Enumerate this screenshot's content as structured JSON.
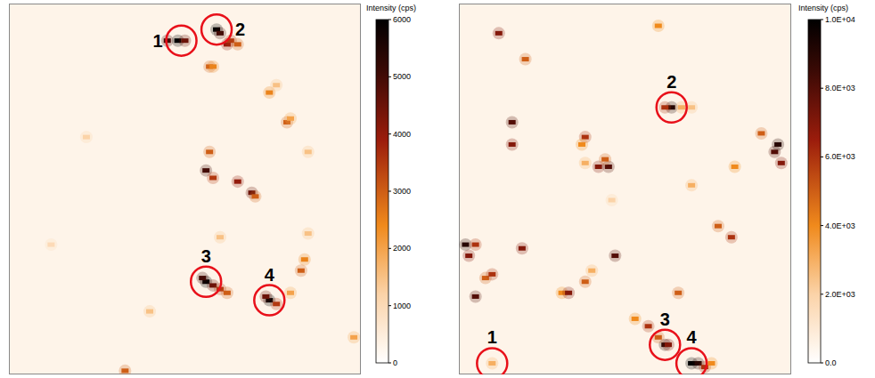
{
  "chart_data": [
    {
      "type": "heatmap",
      "tick_labels": false,
      "xlim": [
        0,
        100
      ],
      "ylim": [
        0,
        100
      ],
      "background": 300,
      "colorbar": {
        "title": "Intensity (cps)",
        "range": [
          0,
          6000
        ],
        "ticks": [
          0,
          1000,
          2000,
          3000,
          4000,
          5000,
          6000
        ]
      },
      "spots": [
        {
          "x": 48,
          "y": 90,
          "value": 6000
        },
        {
          "x": 45,
          "y": 90,
          "value": 5000
        },
        {
          "x": 50,
          "y": 90,
          "value": 4500
        },
        {
          "x": 59,
          "y": 93,
          "value": 6000
        },
        {
          "x": 60,
          "y": 92,
          "value": 5000
        },
        {
          "x": 62,
          "y": 89,
          "value": 4000
        },
        {
          "x": 57,
          "y": 83,
          "value": 3000
        },
        {
          "x": 58,
          "y": 83,
          "value": 2500
        },
        {
          "x": 63,
          "y": 90,
          "value": 3500
        },
        {
          "x": 65,
          "y": 89,
          "value": 3000
        },
        {
          "x": 74,
          "y": 76,
          "value": 2500
        },
        {
          "x": 76,
          "y": 78,
          "value": 1500
        },
        {
          "x": 79,
          "y": 68,
          "value": 3000
        },
        {
          "x": 80,
          "y": 69,
          "value": 2000
        },
        {
          "x": 22,
          "y": 64,
          "value": 1200
        },
        {
          "x": 56,
          "y": 55,
          "value": 5000
        },
        {
          "x": 58,
          "y": 53,
          "value": 3500
        },
        {
          "x": 65,
          "y": 52,
          "value": 4000
        },
        {
          "x": 69,
          "y": 49,
          "value": 4500
        },
        {
          "x": 70,
          "y": 48,
          "value": 3000
        },
        {
          "x": 57,
          "y": 60,
          "value": 3000
        },
        {
          "x": 85,
          "y": 60,
          "value": 1500
        },
        {
          "x": 56,
          "y": 25,
          "value": 6000
        },
        {
          "x": 55,
          "y": 26,
          "value": 5000
        },
        {
          "x": 58,
          "y": 24,
          "value": 4500
        },
        {
          "x": 60,
          "y": 23,
          "value": 3500
        },
        {
          "x": 62,
          "y": 22,
          "value": 3000
        },
        {
          "x": 74,
          "y": 20,
          "value": 6000
        },
        {
          "x": 73,
          "y": 21,
          "value": 4500
        },
        {
          "x": 76,
          "y": 19,
          "value": 3500
        },
        {
          "x": 80,
          "y": 22,
          "value": 2000
        },
        {
          "x": 84,
          "y": 31,
          "value": 2500
        },
        {
          "x": 83,
          "y": 28,
          "value": 3000
        },
        {
          "x": 85,
          "y": 38,
          "value": 1500
        },
        {
          "x": 98,
          "y": 10,
          "value": 2000
        },
        {
          "x": 33,
          "y": 1,
          "value": 3000
        },
        {
          "x": 40,
          "y": 17,
          "value": 1500
        },
        {
          "x": 12,
          "y": 35,
          "value": 1000
        },
        {
          "x": 60,
          "y": 37,
          "value": 1500
        }
      ],
      "markers": [
        {
          "label": "1",
          "x": 49,
          "y": 90
        },
        {
          "label": "2",
          "x": 59,
          "y": 93
        },
        {
          "label": "3",
          "x": 56,
          "y": 25
        },
        {
          "label": "4",
          "x": 74,
          "y": 20
        }
      ]
    },
    {
      "type": "heatmap",
      "tick_labels": false,
      "xlim": [
        0,
        100
      ],
      "ylim": [
        0,
        100
      ],
      "background": 500,
      "colorbar": {
        "title": "Intensity (cps)",
        "range": [
          0,
          10000
        ],
        "ticks": [
          {
            "value": 0,
            "label": "0.0"
          },
          {
            "value": 2000,
            "label": "2.0E+03"
          },
          {
            "value": 4000,
            "label": "4.0E+03"
          },
          {
            "value": 6000,
            "label": "6.0E+03"
          },
          {
            "value": 8000,
            "label": "8.0E+03"
          },
          {
            "value": 10000,
            "label": "1.0E+04"
          }
        ]
      },
      "spots": [
        {
          "x": 64,
          "y": 72,
          "value": 9000
        },
        {
          "x": 62,
          "y": 72,
          "value": 6000
        },
        {
          "x": 67,
          "y": 72,
          "value": 3000
        },
        {
          "x": 70,
          "y": 72,
          "value": 2500
        },
        {
          "x": 38,
          "y": 64,
          "value": 6000
        },
        {
          "x": 37,
          "y": 62,
          "value": 4000
        },
        {
          "x": 42,
          "y": 56,
          "value": 7000
        },
        {
          "x": 45,
          "y": 56,
          "value": 8000
        },
        {
          "x": 44,
          "y": 58,
          "value": 5000
        },
        {
          "x": 38,
          "y": 57,
          "value": 3000
        },
        {
          "x": 16,
          "y": 68,
          "value": 8000
        },
        {
          "x": 16,
          "y": 62,
          "value": 7000
        },
        {
          "x": 95,
          "y": 60,
          "value": 8000
        },
        {
          "x": 96,
          "y": 62,
          "value": 9000
        },
        {
          "x": 97,
          "y": 57,
          "value": 7000
        },
        {
          "x": 91,
          "y": 65,
          "value": 5000
        },
        {
          "x": 83,
          "y": 56,
          "value": 4000
        },
        {
          "x": 70,
          "y": 51,
          "value": 3000
        },
        {
          "x": 46,
          "y": 47,
          "value": 2000
        },
        {
          "x": 78,
          "y": 40,
          "value": 5000
        },
        {
          "x": 82,
          "y": 37,
          "value": 6000
        },
        {
          "x": 2,
          "y": 35,
          "value": 9000
        },
        {
          "x": 5,
          "y": 35,
          "value": 6000
        },
        {
          "x": 3,
          "y": 32,
          "value": 7000
        },
        {
          "x": 8,
          "y": 26,
          "value": 5000
        },
        {
          "x": 5,
          "y": 21,
          "value": 8000
        },
        {
          "x": 19,
          "y": 34,
          "value": 7000
        },
        {
          "x": 10,
          "y": 27,
          "value": 6000
        },
        {
          "x": 31,
          "y": 22,
          "value": 4000
        },
        {
          "x": 33,
          "y": 22,
          "value": 7000
        },
        {
          "x": 38,
          "y": 25,
          "value": 5000
        },
        {
          "x": 40,
          "y": 28,
          "value": 3000
        },
        {
          "x": 47,
          "y": 32,
          "value": 8000
        },
        {
          "x": 62,
          "y": 8,
          "value": 9000
        },
        {
          "x": 63,
          "y": 8,
          "value": 7000
        },
        {
          "x": 60,
          "y": 10,
          "value": 5000
        },
        {
          "x": 70,
          "y": 3,
          "value": 10000
        },
        {
          "x": 72,
          "y": 3,
          "value": 9000
        },
        {
          "x": 74,
          "y": 2,
          "value": 6000
        },
        {
          "x": 76,
          "y": 3,
          "value": 4000
        },
        {
          "x": 10,
          "y": 3,
          "value": 3000
        },
        {
          "x": 53,
          "y": 15,
          "value": 4000
        },
        {
          "x": 57,
          "y": 13,
          "value": 6000
        },
        {
          "x": 66,
          "y": 22,
          "value": 5000
        },
        {
          "x": 12,
          "y": 92,
          "value": 7000
        },
        {
          "x": 60,
          "y": 94,
          "value": 4000
        },
        {
          "x": 20,
          "y": 85,
          "value": 5000
        }
      ],
      "markers": [
        {
          "label": "1",
          "x": 10,
          "y": 3
        },
        {
          "label": "2",
          "x": 64,
          "y": 72
        },
        {
          "label": "3",
          "x": 62,
          "y": 8
        },
        {
          "label": "4",
          "x": 70,
          "y": 3
        }
      ]
    }
  ]
}
